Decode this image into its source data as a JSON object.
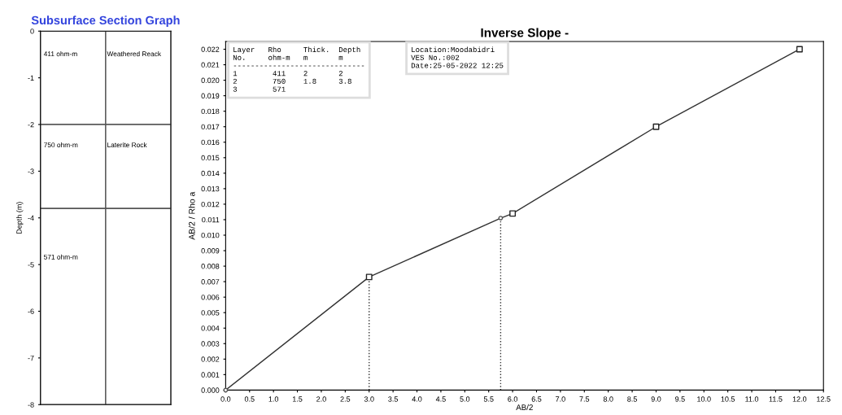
{
  "chart_data": [
    {
      "type": "bar",
      "stacked": true,
      "title": "Subsurface Section Graph",
      "ylabel": "Depth (m)",
      "ylim": [
        -8,
        0
      ],
      "yticks": [
        0,
        -1,
        -2,
        -3,
        -4,
        -5,
        -6,
        -7,
        -8
      ],
      "categories": [
        null,
        null
      ],
      "series": [
        {
          "color": "#ffffff",
          "values": [
            -2,
            -2
          ]
        },
        {
          "color": "#ffffff",
          "values": [
            -1.8,
            -1.8
          ]
        },
        {
          "color": "#ffffff",
          "values": [
            -4.2,
            -4.2
          ]
        }
      ],
      "annotations": [
        "411 ohm-m",
        "Weathered Reack",
        "750 ohm-m",
        "Laterite Rock",
        "571 ohm-m"
      ]
    },
    {
      "type": "line",
      "title": "Inverse Slope -",
      "xlabel": "AB/2",
      "ylabel": "AB/2 / Rho a",
      "grid": false,
      "xlim": [
        0,
        12.5
      ],
      "xticks": [
        {
          "value": 0,
          "label": "0.0"
        },
        0.5,
        {
          "value": 1,
          "label": "1.0"
        },
        1.5,
        {
          "value": 2,
          "label": "2.0"
        },
        2.5,
        {
          "value": 3,
          "label": "3.0"
        },
        3.5,
        {
          "value": 4,
          "label": "4.0"
        },
        4.5,
        {
          "value": 5,
          "label": "5.0"
        },
        5.5,
        {
          "value": 6,
          "label": "6.0"
        },
        6.5,
        {
          "value": 7,
          "label": "7.0"
        },
        7.5,
        {
          "value": 8,
          "label": "8.0"
        },
        8.5,
        {
          "value": 9,
          "label": "9.0"
        },
        9.5,
        {
          "value": 10,
          "label": "10.0"
        },
        10.5,
        {
          "value": 11,
          "label": "11.0"
        },
        11.5,
        {
          "value": 12,
          "label": "12.0"
        },
        12.5
      ],
      "ylim": [
        0,
        0.0225
      ],
      "yticks": [
        {
          "value": 0,
          "label": "0.000"
        },
        0.001,
        0.002,
        0.003,
        0.004,
        0.005,
        0.006,
        0.007,
        0.008,
        0.009,
        {
          "value": 0.01,
          "label": "0.010"
        },
        0.011,
        0.012,
        0.013,
        0.014,
        0.015,
        0.016,
        0.017,
        0.018,
        0.019,
        {
          "value": 0.02,
          "label": "0.020"
        },
        0.021,
        0.022
      ],
      "series": [
        {
          "type": "line",
          "color": "#333333",
          "x": [
            0,
            3,
            5.75,
            6,
            9,
            12
          ],
          "values": [
            0,
            0.0073,
            0.0111,
            0.0114,
            0.017,
            0.022
          ],
          "marker": "none",
          "line_style": "solid"
        },
        {
          "type": "scatter",
          "color": "#222222",
          "x": [
            3,
            6,
            9,
            12
          ],
          "values": [
            0.0073,
            0.0114,
            0.017,
            0.022
          ],
          "marker": "square"
        },
        {
          "type": "scatter",
          "color": "#555555",
          "x": [
            0,
            5.75
          ],
          "values": [
            0,
            0.0111
          ],
          "marker": "circle"
        },
        {
          "type": "line",
          "color": "#333333",
          "x": [
            3,
            3
          ],
          "values": [
            0,
            0.0073
          ],
          "marker": "none",
          "line_style": "dotted"
        },
        {
          "type": "line",
          "color": "#333333",
          "x": [
            5.75,
            5.75
          ],
          "values": [
            0,
            0.0111
          ],
          "marker": "none",
          "line_style": "dotted"
        }
      ],
      "annotations": [
        "Layer   Rho     Thick.  Depth\nNo.     ohm-m   m       m\n------------------------------\n1        411    2       2\n2        750    1.8     3.8\n3        571",
        "Location:Moodabidri\nVES No.:002\nDate:25-05-2022 12:25"
      ]
    }
  ]
}
